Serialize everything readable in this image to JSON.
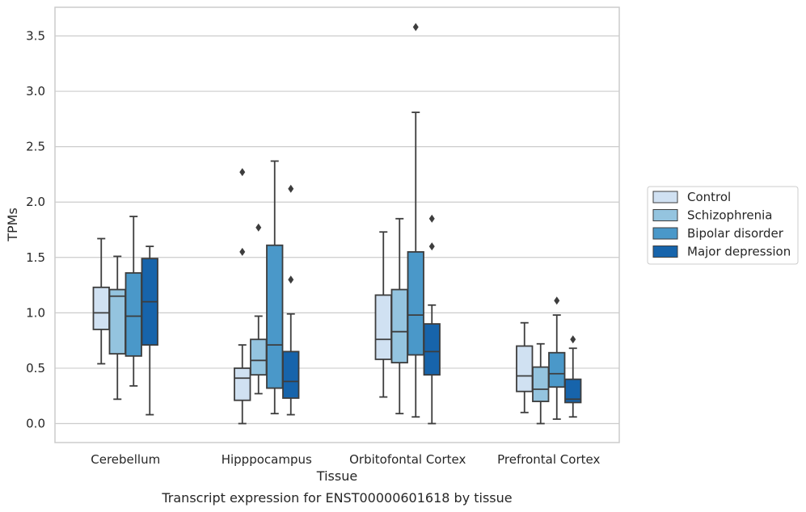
{
  "caption": "Transcript expression for ENST00000601618 by tissue",
  "chart_data": {
    "type": "box",
    "xlabel": "Tissue",
    "ylabel": "TPMs",
    "ylim": [
      -0.17,
      3.76
    ],
    "yticks": [
      0.0,
      0.5,
      1.0,
      1.5,
      2.0,
      2.5,
      3.0,
      3.5
    ],
    "ytick_labels": [
      "0.0",
      "0.5",
      "1.0",
      "1.5",
      "2.0",
      "2.5",
      "3.0",
      "3.5"
    ],
    "grid": "horizontal",
    "legend_position": "right",
    "categories": [
      "Cerebellum",
      "Hipppocampus",
      "Orbitofontal Cortex",
      "Prefrontal Cortex"
    ],
    "series": [
      {
        "name": "Control",
        "color": "#d0e1f2",
        "boxes": [
          {
            "whisker_low": 0.54,
            "q1": 0.85,
            "median": 1.0,
            "q3": 1.23,
            "whisker_high": 1.67,
            "outliers": []
          },
          {
            "whisker_low": 0.0,
            "q1": 0.21,
            "median": 0.41,
            "q3": 0.5,
            "whisker_high": 0.71,
            "outliers": [
              1.55,
              2.27
            ]
          },
          {
            "whisker_low": 0.24,
            "q1": 0.58,
            "median": 0.76,
            "q3": 1.16,
            "whisker_high": 1.73,
            "outliers": []
          },
          {
            "whisker_low": 0.1,
            "q1": 0.29,
            "median": 0.43,
            "q3": 0.7,
            "whisker_high": 0.91,
            "outliers": []
          }
        ]
      },
      {
        "name": "Schizophrenia",
        "color": "#94c4df",
        "boxes": [
          {
            "whisker_low": 0.22,
            "q1": 0.63,
            "median": 1.15,
            "q3": 1.21,
            "whisker_high": 1.51,
            "outliers": []
          },
          {
            "whisker_low": 0.27,
            "q1": 0.44,
            "median": 0.57,
            "q3": 0.76,
            "whisker_high": 0.97,
            "outliers": [
              1.77
            ]
          },
          {
            "whisker_low": 0.09,
            "q1": 0.55,
            "median": 0.83,
            "q3": 1.21,
            "whisker_high": 1.85,
            "outliers": []
          },
          {
            "whisker_low": 0.0,
            "q1": 0.2,
            "median": 0.31,
            "q3": 0.51,
            "whisker_high": 0.72,
            "outliers": []
          }
        ]
      },
      {
        "name": "Bipolar disorder",
        "color": "#4a98c9",
        "boxes": [
          {
            "whisker_low": 0.34,
            "q1": 0.61,
            "median": 0.97,
            "q3": 1.36,
            "whisker_high": 1.87,
            "outliers": []
          },
          {
            "whisker_low": 0.09,
            "q1": 0.32,
            "median": 0.71,
            "q3": 1.61,
            "whisker_high": 2.37,
            "outliers": []
          },
          {
            "whisker_low": 0.06,
            "q1": 0.62,
            "median": 0.98,
            "q3": 1.55,
            "whisker_high": 2.81,
            "outliers": [
              3.58
            ]
          },
          {
            "whisker_low": 0.04,
            "q1": 0.33,
            "median": 0.45,
            "q3": 0.64,
            "whisker_high": 0.98,
            "outliers": [
              1.11
            ]
          }
        ]
      },
      {
        "name": "Major depression",
        "color": "#1764ab",
        "boxes": [
          {
            "whisker_low": 0.08,
            "q1": 0.71,
            "median": 1.1,
            "q3": 1.49,
            "whisker_high": 1.6,
            "outliers": []
          },
          {
            "whisker_low": 0.08,
            "q1": 0.23,
            "median": 0.38,
            "q3": 0.65,
            "whisker_high": 0.99,
            "outliers": [
              1.3,
              2.12
            ]
          },
          {
            "whisker_low": 0.0,
            "q1": 0.44,
            "median": 0.65,
            "q3": 0.9,
            "whisker_high": 1.07,
            "outliers": [
              1.6,
              1.85
            ]
          },
          {
            "whisker_low": 0.06,
            "q1": 0.19,
            "median": 0.22,
            "q3": 0.4,
            "whisker_high": 0.68,
            "outliers": [
              0.76
            ]
          }
        ]
      }
    ]
  }
}
